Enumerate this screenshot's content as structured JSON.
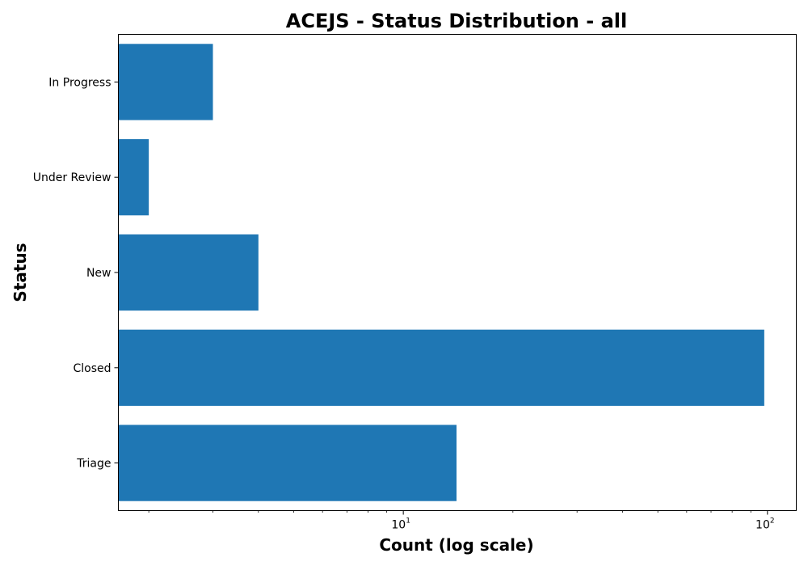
{
  "chart_data": {
    "type": "bar",
    "orientation": "horizontal",
    "title": "ACEJS - Status Distribution - all",
    "xlabel": "Count (log scale)",
    "ylabel": "Status",
    "x_scale": "log",
    "xlim": [
      1.65,
      120
    ],
    "grid": false,
    "categories": [
      "Triage",
      "Closed",
      "New",
      "Under Review",
      "In Progress"
    ],
    "values": [
      14,
      98,
      4,
      2,
      3
    ],
    "bar_color": "#1f77b4",
    "x_ticks": [
      {
        "base": "10",
        "exponent": "1",
        "value": 10
      },
      {
        "base": "10",
        "exponent": "2",
        "value": 100
      }
    ]
  }
}
